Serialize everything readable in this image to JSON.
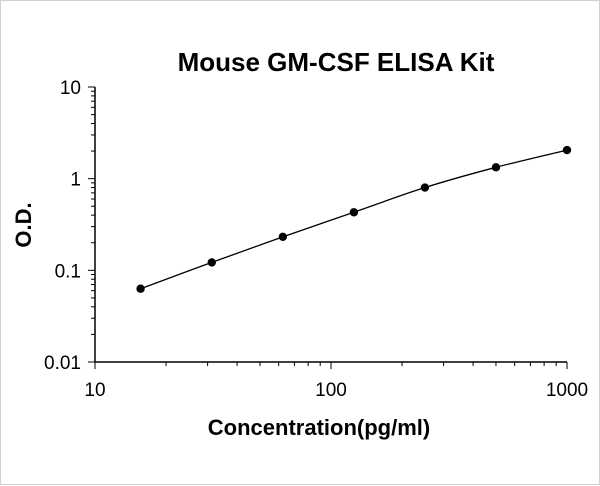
{
  "chart_data": {
    "type": "scatter",
    "title": "Mouse GM-CSF ELISA Kit",
    "xlabel": "Concentration(pg/ml)",
    "ylabel": "O.D.",
    "xscale": "log",
    "yscale": "log",
    "xlim": [
      10,
      1000
    ],
    "ylim": [
      0.01,
      10
    ],
    "x_ticks": [
      "10",
      "100",
      "1000"
    ],
    "y_ticks": [
      "0.01",
      "0.1",
      "1",
      "10"
    ],
    "grid": false,
    "legend": "none",
    "trendline": "smooth curve through points",
    "points": [
      {
        "x": 15.6,
        "y": 0.063
      },
      {
        "x": 31.25,
        "y": 0.122
      },
      {
        "x": 62.5,
        "y": 0.232
      },
      {
        "x": 125,
        "y": 0.43
      },
      {
        "x": 250,
        "y": 0.8
      },
      {
        "x": 500,
        "y": 1.33
      },
      {
        "x": 1000,
        "y": 2.05
      }
    ],
    "colors": {
      "marker": "#000000",
      "line": "#000000",
      "axis": "#000000"
    }
  }
}
